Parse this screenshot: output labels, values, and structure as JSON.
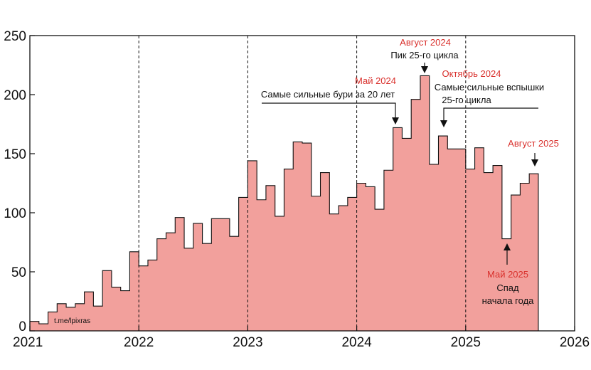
{
  "chart_data": {
    "type": "bar",
    "title": "",
    "xlabel": "",
    "ylabel": "",
    "xlim": [
      2021,
      2026
    ],
    "ylim": [
      0,
      250
    ],
    "x_ticks": [
      "2021",
      "2022",
      "2023",
      "2024",
      "2025",
      "2026"
    ],
    "y_ticks": [
      "0",
      "50",
      "100",
      "150",
      "200",
      "250"
    ],
    "year_dividers": [
      2022,
      2023,
      2024,
      2025
    ],
    "start_year": 2021,
    "values": [
      8,
      6,
      16,
      23,
      20,
      23,
      33,
      21,
      51,
      37,
      34,
      67,
      55,
      60,
      78,
      83,
      96,
      70,
      91,
      74,
      95,
      95,
      80,
      113,
      144,
      111,
      123,
      97,
      137,
      160,
      159,
      114,
      134,
      99,
      106,
      113,
      125,
      122,
      103,
      136,
      172,
      163,
      196,
      216,
      141,
      165,
      154,
      154,
      137,
      155,
      134,
      140,
      78,
      115,
      125,
      133
    ],
    "fill_color": "#f2a09c",
    "line_color": "#111111",
    "accent_color": "#d9302c",
    "watermark": "t.me/lpixras",
    "annotations": [
      {
        "id": "may2024",
        "date": "Май 2024",
        "text": [
          "Самые сильные бури за 20 лет"
        ],
        "month_index": 40
      },
      {
        "id": "aug2024",
        "date": "Август 2024",
        "text": [
          "Пик 25-го цикла"
        ],
        "month_index": 43
      },
      {
        "id": "oct2024",
        "date": "Октябрь 2024",
        "text": [
          "Самые сильные вспышки",
          "25-го цикла"
        ],
        "month_index": 45
      },
      {
        "id": "aug2025",
        "date": "Август 2025",
        "text": [],
        "month_index": 55
      },
      {
        "id": "may2025",
        "date": "Май 2025",
        "text": [
          "Спад",
          "начала года"
        ],
        "month_index": 52
      }
    ]
  }
}
